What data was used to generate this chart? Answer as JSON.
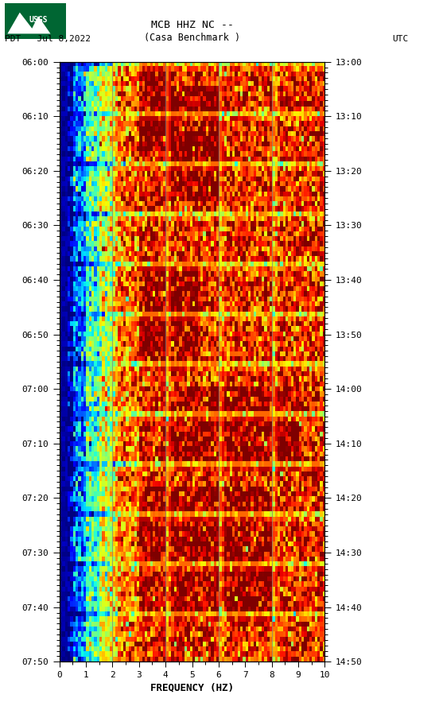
{
  "title_line1": "MCB HHZ NC --",
  "title_line2": "(Casa Benchmark )",
  "date_label": "PDT   Jul 8,2022",
  "utc_label": "UTC",
  "xlabel": "FREQUENCY (HZ)",
  "freq_min": 0,
  "freq_max": 10,
  "freq_ticks": [
    0,
    1,
    2,
    3,
    4,
    5,
    6,
    7,
    8,
    9,
    10
  ],
  "time_left_labels": [
    "06:00",
    "06:10",
    "06:20",
    "06:30",
    "06:40",
    "06:50",
    "07:00",
    "07:10",
    "07:20",
    "07:30",
    "07:40",
    "07:50"
  ],
  "time_right_labels": [
    "13:00",
    "13:10",
    "13:20",
    "13:30",
    "13:40",
    "13:50",
    "14:00",
    "14:10",
    "14:20",
    "14:30",
    "14:40",
    "14:50"
  ],
  "n_time": 120,
  "n_freq": 100,
  "colormap": "jet",
  "background_color": "#ffffff",
  "seed": 42,
  "fig_width": 5.52,
  "fig_height": 8.93,
  "vgrid_freqs": [
    2,
    4,
    6,
    8
  ],
  "vgrid_color": "#808080",
  "vgrid_alpha": 0.7,
  "hgrid_color": "#808080",
  "hgrid_alpha": 0.7
}
